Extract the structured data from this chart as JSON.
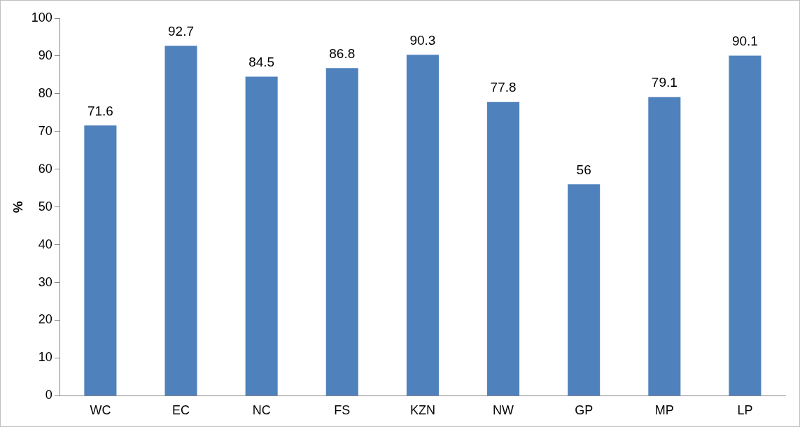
{
  "chart_data": {
    "type": "bar",
    "ylabel": "%",
    "categories": [
      "WC",
      "EC",
      "NC",
      "FS",
      "KZN",
      "NW",
      "GP",
      "MP",
      "LP"
    ],
    "values": [
      71.6,
      92.7,
      84.5,
      86.8,
      90.3,
      77.8,
      56,
      79.1,
      90.1
    ],
    "color": "#4f81bd",
    "ylim": [
      0,
      100
    ],
    "yticks": [
      0,
      10,
      20,
      30,
      40,
      50,
      60,
      70,
      80,
      90,
      100
    ],
    "data_labels": true
  }
}
